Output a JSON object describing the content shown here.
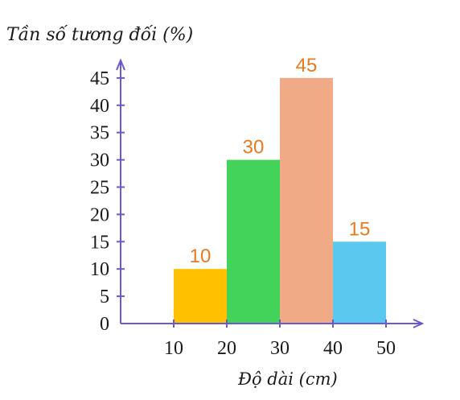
{
  "chart_data": {
    "type": "bar",
    "ylabel": "Tần số tương đối (%)",
    "xlabel": "Độ dài (cm)",
    "x_ticks": [
      "10",
      "20",
      "30",
      "40",
      "50"
    ],
    "y_ticks": [
      "0",
      "5",
      "10",
      "15",
      "20",
      "25",
      "30",
      "35",
      "40",
      "45"
    ],
    "ylim": [
      0,
      45
    ],
    "xlim": [
      0,
      55
    ],
    "bins": [
      {
        "from": 10,
        "to": 20,
        "value": 10,
        "label": "10",
        "color": "#ffc000"
      },
      {
        "from": 20,
        "to": 30,
        "value": 30,
        "label": "30",
        "color": "#44d35a"
      },
      {
        "from": 30,
        "to": 40,
        "value": 45,
        "label": "45",
        "color": "#f0aa85"
      },
      {
        "from": 40,
        "to": 50,
        "value": 15,
        "label": "15",
        "color": "#5ac8ef"
      }
    ],
    "data_label_color": "#e87a1f",
    "axis_color": "#6a5acd",
    "grid": false
  }
}
